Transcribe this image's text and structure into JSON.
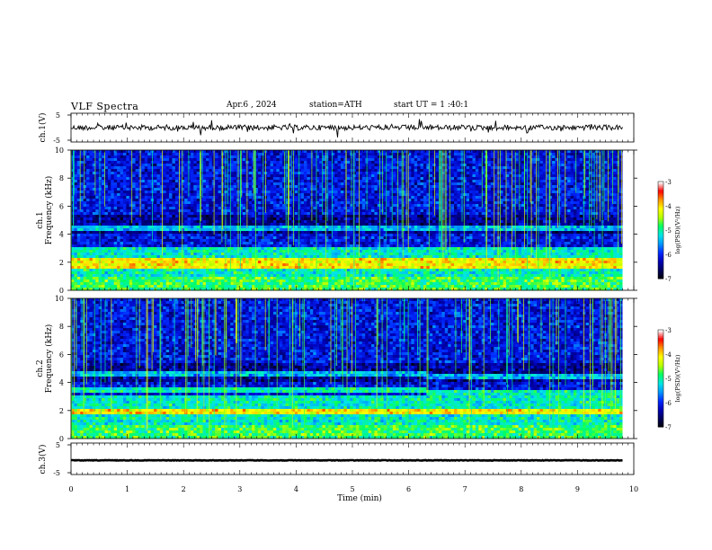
{
  "header": {
    "title": "VLF Spectra",
    "date": "Apr.6 , 2024",
    "station": "station=ATH",
    "start": "start UT = 1 :40:1"
  },
  "chart_data": [
    {
      "type": "line",
      "panel": "ch1-waveform",
      "ylabel": "ch.1(V)",
      "yticks": [
        "5",
        "-5"
      ],
      "ylim": [
        -5,
        5
      ],
      "description_values": {
        "mean": 0,
        "noise_amplitude": 0.6
      }
    },
    {
      "type": "heatmap",
      "panel": "ch1-spectrogram",
      "ylabel_top": "ch.1",
      "ylabel": "Frequency (kHz)",
      "ylim": [
        0,
        10
      ],
      "yticks": [
        "0",
        "2",
        "4",
        "6",
        "8",
        "10"
      ],
      "colorbar_label": "log(PSD)(V²/Hz)",
      "colorbar_ticks": [
        "-3",
        "-4",
        "-5",
        "-6",
        "-7"
      ],
      "clim": [
        -7,
        -3
      ],
      "dominant_bands_khz": [
        1.8,
        2.2,
        4.5
      ],
      "transition_time_min": 6.3
    },
    {
      "type": "heatmap",
      "panel": "ch2-spectrogram",
      "ylabel_top": "ch.2",
      "ylabel": "Frequency (kHz)",
      "ylim": [
        0,
        10
      ],
      "yticks": [
        "0",
        "2",
        "4",
        "6",
        "8",
        "10"
      ],
      "colorbar_label": "log(PSD)(V²/Hz)",
      "colorbar_ticks": [
        "-3",
        "-4",
        "-5",
        "-6",
        "-7"
      ],
      "clim": [
        -7,
        -3
      ],
      "dominant_bands_khz": [
        2.0,
        3.5,
        4.6
      ],
      "transition_time_min": 6.3
    },
    {
      "type": "line",
      "panel": "ch3-waveform",
      "ylabel": "ch.3(V)",
      "yticks": [
        "5",
        "-5"
      ],
      "ylim": [
        -5,
        5
      ],
      "description_values": {
        "mean": 0.5,
        "noise_amplitude": 0.1
      }
    },
    {
      "type": "axis",
      "panel": "time-axis",
      "xlabel": "Time (min)",
      "xlim": [
        0,
        10
      ],
      "xticks": [
        "0",
        "1",
        "2",
        "3",
        "4",
        "5",
        "6",
        "7",
        "8",
        "9",
        "10"
      ],
      "data_end_min": 9.8
    }
  ],
  "colormap": [
    "#000000",
    "#00005a",
    "#0000b4",
    "#0028ff",
    "#0096ff",
    "#00e6e6",
    "#00ff64",
    "#b4ff00",
    "#ffff00",
    "#ff9600",
    "#ff0000",
    "#ffffff"
  ]
}
